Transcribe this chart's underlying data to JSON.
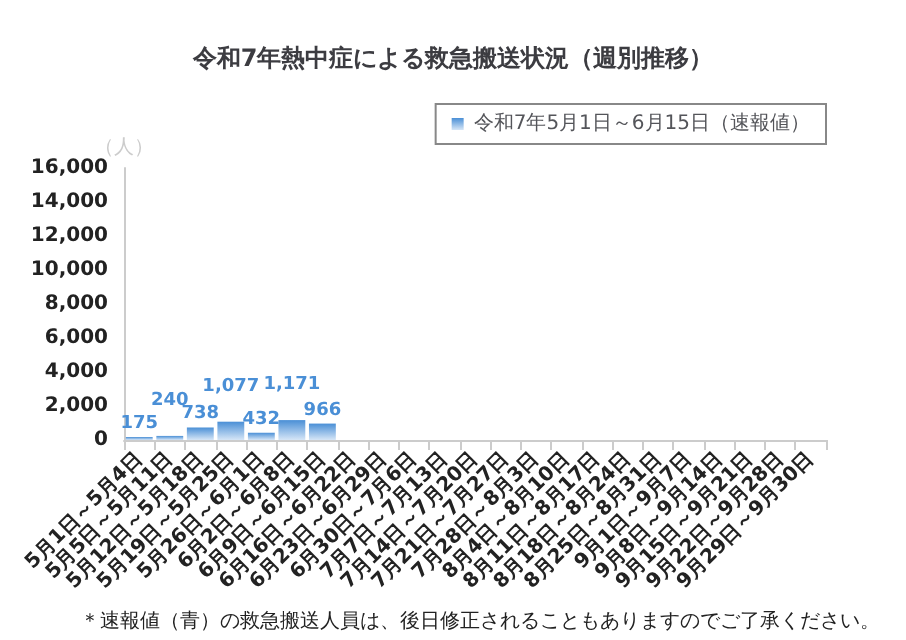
{
  "chart_data": {
    "type": "bar",
    "title": "令和7年熱中症による救急搬送状況（週別推移）",
    "ylabel": "（人）",
    "categories": [
      "5月1日～5月4日",
      "5月5日～5月11日",
      "5月12日～5月18日",
      "5月19日～5月25日",
      "5月26日～6月1日",
      "6月2日～6月8日",
      "6月9日～6月15日",
      "6月16日～6月22日",
      "6月23日～6月29日",
      "6月30日～7月6日",
      "7月7日～7月13日",
      "7月14日～7月20日",
      "7月21日～7月27日",
      "7月28日～8月3日",
      "8月4日～8月10日",
      "8月11日～8月17日",
      "8月18日～8月24日",
      "8月25日～8月31日",
      "9月1日～9月7日",
      "9月8日～9月14日",
      "9月15日～9月21日",
      "9月22日～9月28日",
      "9月29日～9月30日"
    ],
    "series": [
      {
        "name": "令和7年5月1日～6月15日（速報値）",
        "color": "#4a8fd6",
        "values": [
          175,
          240,
          738,
          1077,
          432,
          1171,
          966,
          null,
          null,
          null,
          null,
          null,
          null,
          null,
          null,
          null,
          null,
          null,
          null,
          null,
          null,
          null,
          null
        ]
      }
    ],
    "value_labels": [
      "175",
      "240",
      "738",
      "1,077",
      "432",
      "1,171",
      "966",
      null,
      null,
      null,
      null,
      null,
      null,
      null,
      null,
      null,
      null,
      null,
      null,
      null,
      null,
      null,
      null
    ],
    "ylim": [
      0,
      16000
    ],
    "yticks": [
      0,
      {
        "value": 2000,
        "label": "2,000"
      },
      {
        "value": 4000,
        "label": "4,000"
      },
      {
        "value": 6000,
        "label": "6,000"
      },
      {
        "value": 8000,
        "label": "8,000"
      },
      {
        "value": 10000,
        "label": "10,000"
      },
      {
        "value": 12000,
        "label": "12,000"
      },
      {
        "value": 14000,
        "label": "14,000"
      },
      {
        "value": 16000,
        "label": "16,000"
      }
    ],
    "grid": false,
    "legend": "top right",
    "annotations": [
      "＊速報値（青）の救急搬送人員は、後日修正されることもありますのでご了承ください。"
    ]
  }
}
